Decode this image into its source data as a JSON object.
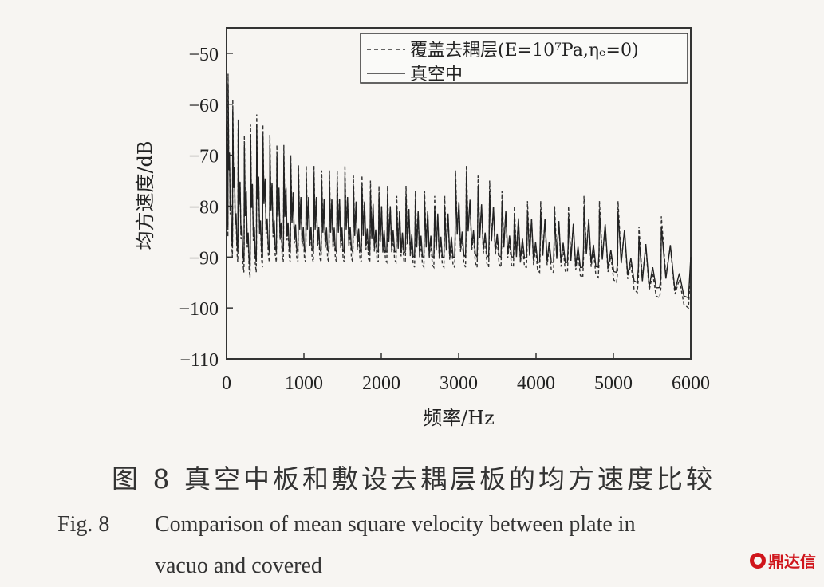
{
  "chart_data": {
    "type": "line",
    "xlabel": "频率/Hz",
    "ylabel": "均方速度/dB",
    "xlim": [
      0,
      6000
    ],
    "ylim": [
      -110,
      -45
    ],
    "xticks": [
      0,
      1000,
      2000,
      3000,
      4000,
      5000,
      6000
    ],
    "yticks": [
      -50,
      -60,
      -70,
      -80,
      -90,
      -100,
      -110
    ],
    "legend_position": "top-right",
    "series": [
      {
        "name": "覆盖去耦层(E=10⁷Pa,ηₑ=0)",
        "style": "dashed",
        "color": "#333333",
        "peaks_x": [
          20,
          80,
          150,
          230,
          310,
          390,
          470,
          560,
          650,
          740,
          830,
          930,
          1030,
          1130,
          1230,
          1330,
          1430,
          1530,
          1640,
          1750,
          1860,
          1970,
          2080,
          2200,
          2320,
          2440,
          2560,
          2690,
          2820,
          2960,
          3100,
          3250,
          3400,
          3560,
          3720,
          3890,
          4060,
          4240,
          4420,
          4620,
          4820,
          5060,
          5330,
          5620
        ],
        "peaks_y": [
          -54,
          -59,
          -63,
          -66,
          -64,
          -62,
          -64,
          -66,
          -68,
          -68,
          -70,
          -72,
          -72,
          -72,
          -73,
          -73,
          -73,
          -72,
          -74,
          -74,
          -75,
          -76,
          -76,
          -78,
          -76,
          -77,
          -77,
          -78,
          -78,
          -73,
          -72,
          -74,
          -75,
          -77,
          -80,
          -79,
          -79,
          -80,
          -80,
          -78,
          -79,
          -79,
          -84,
          -82
        ],
        "valleys_y": [
          -90,
          -91,
          -93,
          -94,
          -93,
          -92,
          -91,
          -91,
          -91,
          -91,
          -91,
          -91,
          -91,
          -91,
          -91,
          -91,
          -91,
          -91,
          -91,
          -91,
          -91,
          -91,
          -91,
          -91,
          -92,
          -92,
          -92,
          -92,
          -92,
          -92,
          -92,
          -92,
          -92,
          -92,
          -92,
          -93,
          -93,
          -93,
          -94,
          -94,
          -95,
          -97,
          -98,
          -100
        ]
      },
      {
        "name": "真空中",
        "style": "solid",
        "color": "#222222",
        "peaks_x": [
          20,
          80,
          150,
          230,
          310,
          390,
          470,
          560,
          650,
          740,
          830,
          930,
          1030,
          1130,
          1230,
          1330,
          1430,
          1530,
          1640,
          1750,
          1860,
          1970,
          2080,
          2200,
          2320,
          2440,
          2560,
          2690,
          2820,
          2960,
          3100,
          3250,
          3400,
          3560,
          3720,
          3890,
          4060,
          4240,
          4420,
          4620,
          4820,
          5060,
          5330,
          5620
        ],
        "peaks_y": [
          -56,
          -61,
          -65,
          -68,
          -66,
          -64,
          -66,
          -68,
          -70,
          -70,
          -72,
          -74,
          -74,
          -74,
          -75,
          -75,
          -75,
          -74,
          -76,
          -76,
          -77,
          -78,
          -78,
          -80,
          -78,
          -79,
          -79,
          -80,
          -80,
          -75,
          -74,
          -76,
          -77,
          -79,
          -82,
          -81,
          -81,
          -82,
          -82,
          -80,
          -81,
          -81,
          -86,
          -84
        ],
        "valleys_y": [
          -88,
          -89,
          -91,
          -92,
          -91,
          -90,
          -89,
          -89,
          -89,
          -89,
          -89,
          -89,
          -89,
          -89,
          -89,
          -89,
          -89,
          -89,
          -89,
          -89,
          -89,
          -89,
          -89,
          -89,
          -90,
          -90,
          -90,
          -90,
          -90,
          -90,
          -90,
          -90,
          -90,
          -90,
          -90,
          -91,
          -91,
          -91,
          -92,
          -92,
          -93,
          -95,
          -96,
          -98
        ]
      }
    ]
  },
  "legend": {
    "dashed_label": "覆盖去耦层(E=10⁷Pa,ηₑ=0)",
    "solid_label": "真空中"
  },
  "caption": {
    "cn": "图 8   真空中板和敷设去耦层板的均方速度比较",
    "en_fig": "Fig. 8",
    "en_line1": "Comparison of mean square velocity between plate in",
    "en_line2": "vacuo and covered"
  },
  "logo": {
    "text": "鼎达信",
    "color": "#d0151b"
  }
}
